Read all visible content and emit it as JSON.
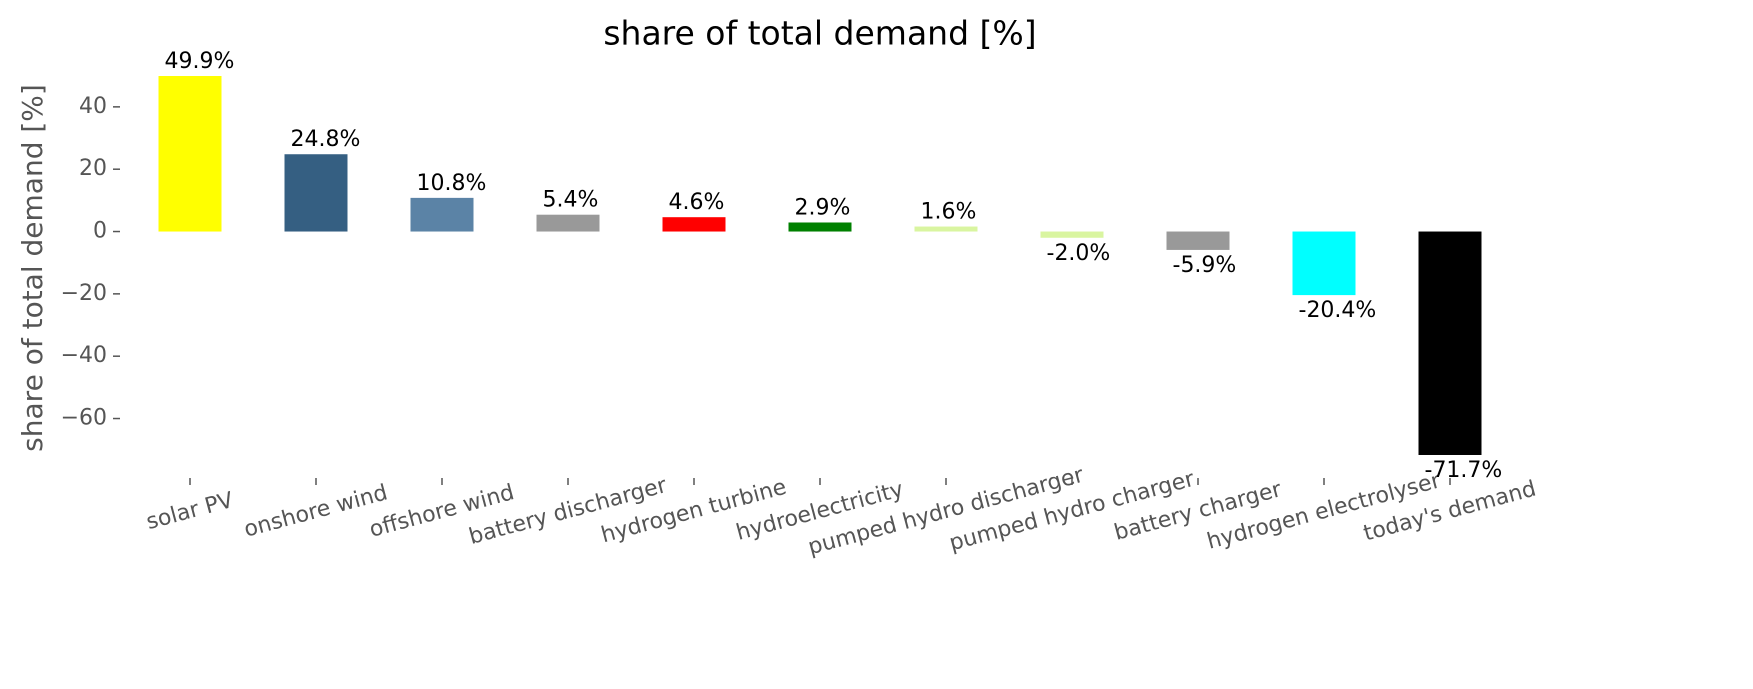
{
  "chart_data": {
    "type": "bar",
    "title": "share of total demand [%]",
    "y_label": "share of total demand [%]",
    "categories": [
      "solar PV",
      "onshore wind",
      "offshore wind",
      "battery discharger",
      "hydrogen turbine",
      "hydroelectricity",
      "pumped hydro discharger",
      "pumped hydro charger",
      "battery charger",
      "hydrogen electrolyser",
      "today's demand"
    ],
    "values": [
      49.9,
      24.8,
      10.8,
      5.4,
      4.6,
      2.9,
      1.6,
      -2.0,
      -5.9,
      -20.4,
      -71.7
    ],
    "value_labels": [
      "49.9%",
      "24.8%",
      "10.8%",
      "5.4%",
      "4.6%",
      "2.9%",
      "1.6%",
      "-2.0%",
      "-5.9%",
      "-20.4%",
      "-71.7%"
    ],
    "colors": [
      "#ffff00",
      "#355f82",
      "#5b83a6",
      "#999999",
      "#ff0000",
      "#008000",
      "#d9f5a0",
      "#d9f5a0",
      "#999999",
      "#00ffff",
      "#000000"
    ],
    "ylim": [
      -77.8,
      56.0
    ],
    "yticks": [
      {
        "value": -60,
        "label": "−60"
      },
      {
        "value": -40,
        "label": "−40"
      },
      {
        "value": -20,
        "label": "−20"
      },
      0,
      20,
      40
    ],
    "grid": false
  }
}
